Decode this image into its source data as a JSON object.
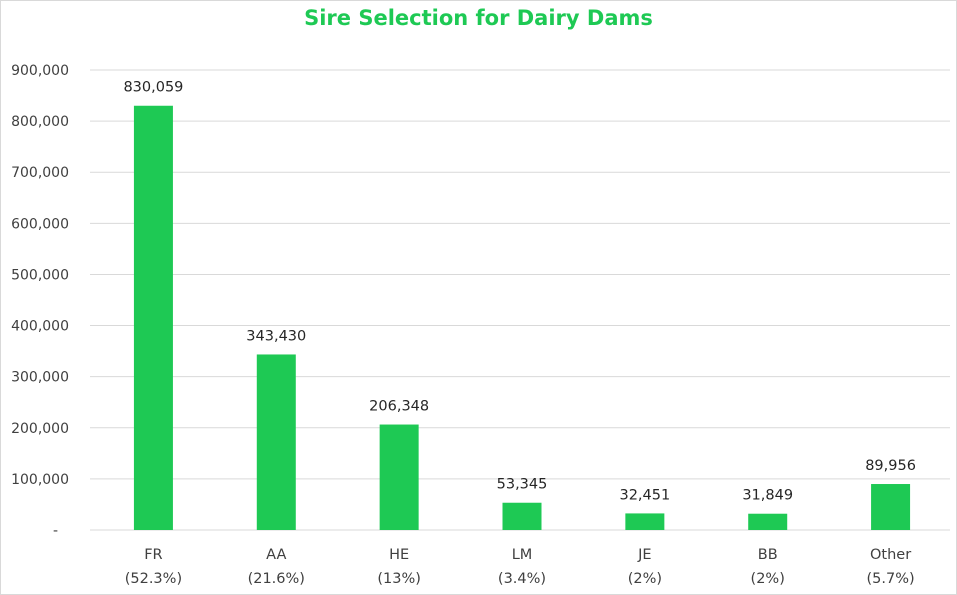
{
  "chart_data": {
    "type": "bar",
    "title": "Sire Selection for Dairy Dams",
    "categories": [
      "FR",
      "AA",
      "HE",
      "LM",
      "JE",
      "BB",
      "Other"
    ],
    "category_subtitles": [
      "(52.3%)",
      "(21.6%)",
      "(13%)",
      "(3.4%)",
      "(2%)",
      "(2%)",
      "(5.7%)"
    ],
    "values": [
      830059,
      343430,
      206348,
      53345,
      32451,
      31849,
      89956
    ],
    "value_labels": [
      "830,059",
      "343,430",
      "206,348",
      "53,345",
      "32,451",
      "31,849",
      "89,956"
    ],
    "ylim": [
      0,
      900000
    ],
    "yticks": [
      0,
      100000,
      200000,
      300000,
      400000,
      500000,
      600000,
      700000,
      800000,
      900000
    ],
    "ytick_labels": [
      "-",
      "100,000",
      "200,000",
      "300,000",
      "400,000",
      "500,000",
      "600,000",
      "700,000",
      "800,000",
      "900,000"
    ],
    "xlabel": "",
    "ylabel": "",
    "grid": true,
    "legend": false,
    "bar_color": "#1ec954",
    "title_color": "#1ec954"
  }
}
